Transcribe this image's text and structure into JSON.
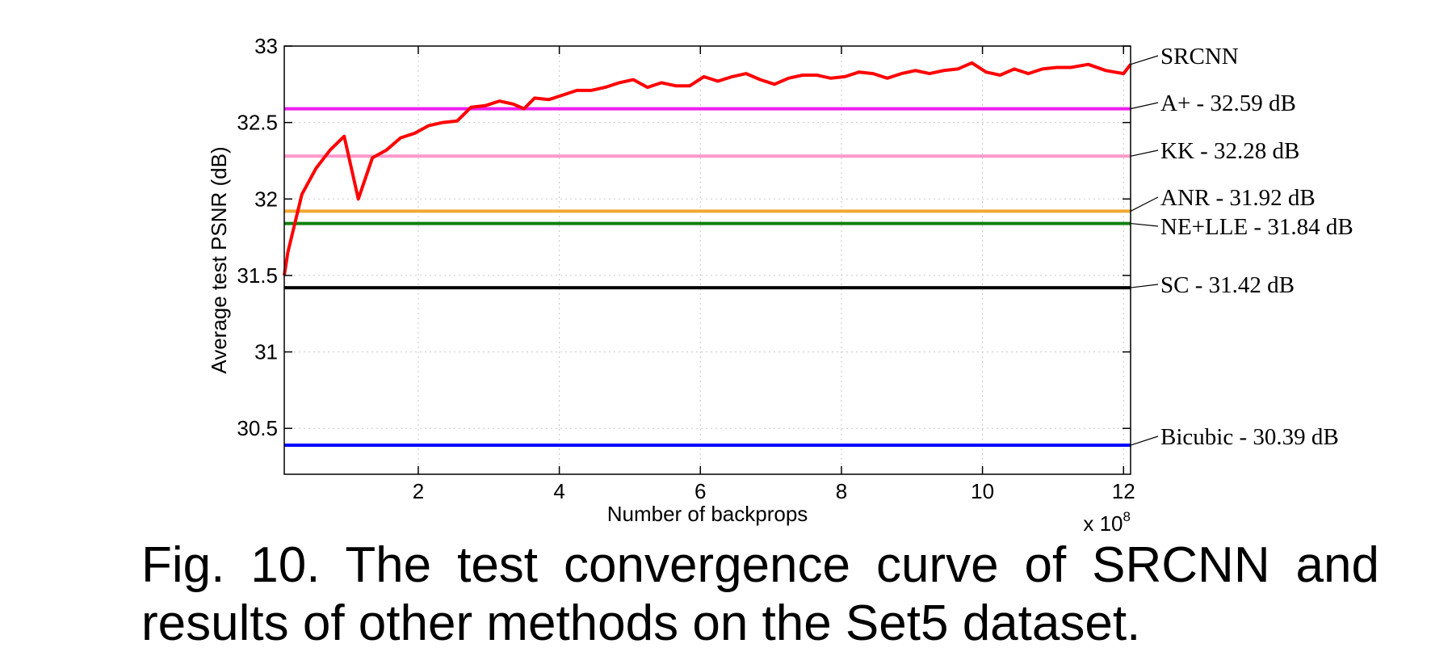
{
  "chart_data": {
    "type": "line",
    "xlabel": "Number of backprops",
    "ylabel": "Average test PSNR (dB)",
    "x_multiplier": "x 10",
    "x_multiplier_exponent": "8",
    "xlim": [
      0.1,
      12.1
    ],
    "ylim": [
      30.2,
      33
    ],
    "xticks": [
      2,
      4,
      6,
      8,
      10,
      12
    ],
    "yticks": [
      30.5,
      31,
      31.5,
      32,
      32.5,
      33
    ],
    "ytick_labels": [
      "30.5",
      "31",
      "31.5",
      "32",
      "32.5",
      "33"
    ],
    "grid": true,
    "series": [
      {
        "name": "SRCNN",
        "color": "#ff0000",
        "x": [
          0.1,
          0.15,
          0.35,
          0.55,
          0.75,
          0.95,
          1.15,
          1.35,
          1.55,
          1.75,
          1.95,
          2.15,
          2.35,
          2.55,
          2.75,
          2.95,
          3.15,
          3.35,
          3.5,
          3.65,
          3.85,
          4.05,
          4.25,
          4.45,
          4.65,
          4.85,
          5.05,
          5.25,
          5.45,
          5.65,
          5.85,
          6.05,
          6.25,
          6.45,
          6.65,
          6.85,
          7.05,
          7.25,
          7.45,
          7.65,
          7.85,
          8.05,
          8.25,
          8.45,
          8.65,
          8.85,
          9.05,
          9.25,
          9.45,
          9.65,
          9.85,
          10.05,
          10.25,
          10.45,
          10.65,
          10.85,
          11.05,
          11.25,
          11.5,
          11.75,
          12.0,
          12.1
        ],
        "y": [
          31.5,
          31.65,
          32.03,
          32.2,
          32.32,
          32.41,
          32.0,
          32.27,
          32.32,
          32.4,
          32.43,
          32.48,
          32.5,
          32.51,
          32.6,
          32.61,
          32.64,
          32.62,
          32.59,
          32.66,
          32.65,
          32.68,
          32.71,
          32.71,
          32.73,
          32.76,
          32.78,
          32.73,
          32.76,
          32.74,
          32.74,
          32.8,
          32.77,
          32.8,
          32.82,
          32.78,
          32.75,
          32.79,
          32.81,
          32.81,
          32.79,
          32.8,
          32.83,
          32.82,
          32.79,
          32.82,
          32.84,
          32.82,
          32.84,
          32.85,
          32.89,
          32.83,
          32.81,
          32.85,
          32.82,
          32.85,
          32.86,
          32.86,
          32.88,
          32.84,
          32.82,
          32.88
        ]
      },
      {
        "name": "A+ - 32.59 dB",
        "color": "#ee1fee",
        "value": 32.59
      },
      {
        "name": "KK - 32.28 dB",
        "color": "#ff99cc",
        "value": 32.28
      },
      {
        "name": "ANR - 31.92 dB",
        "color": "#f0a830",
        "value": 31.92
      },
      {
        "name": "NE+LLE - 31.84 dB",
        "color": "#108010",
        "value": 31.84
      },
      {
        "name": "SC - 31.42 dB",
        "color": "#000000",
        "value": 31.42
      },
      {
        "name": "Bicubic - 30.39 dB",
        "color": "#0000ff",
        "value": 30.39
      }
    ]
  },
  "caption": {
    "line1": "Fig. 10.  The test convergence curve of SRCNN and",
    "line2": "results of other methods on the Set5 dataset."
  }
}
